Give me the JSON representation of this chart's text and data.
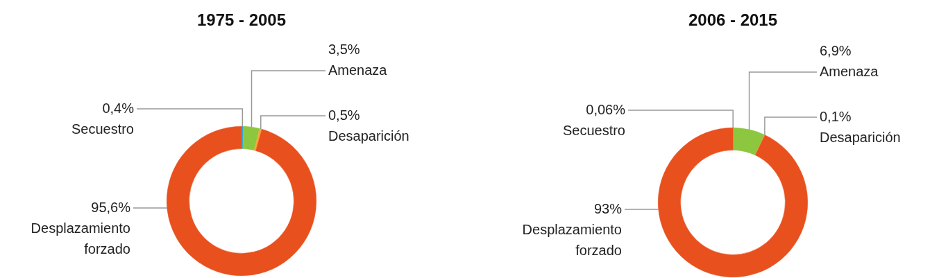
{
  "chart_data": [
    {
      "type": "donut",
      "title": "1975 - 2005",
      "categories": [
        "Secuestro",
        "Amenaza",
        "Desaparición",
        "Desplazamiento forzado"
      ],
      "values": [
        0.4,
        3.5,
        0.5,
        95.6
      ],
      "colors": [
        "#2ba6de",
        "#8dc63f",
        "#f6a935",
        "#e8501e"
      ],
      "value_labels": [
        "0,4%",
        "3,5%",
        "0,5%",
        "95,6%"
      ]
    },
    {
      "type": "donut",
      "title": "2006 - 2015",
      "categories": [
        "Secuestro",
        "Amenaza",
        "Desaparición",
        "Desplazamiento forzado"
      ],
      "values": [
        0.06,
        6.9,
        0.1,
        93
      ],
      "colors": [
        "#2ba6de",
        "#8dc63f",
        "#f6a935",
        "#e8501e"
      ],
      "value_labels": [
        "0,06%",
        "6,9%",
        "0,1%",
        "93%"
      ]
    }
  ]
}
